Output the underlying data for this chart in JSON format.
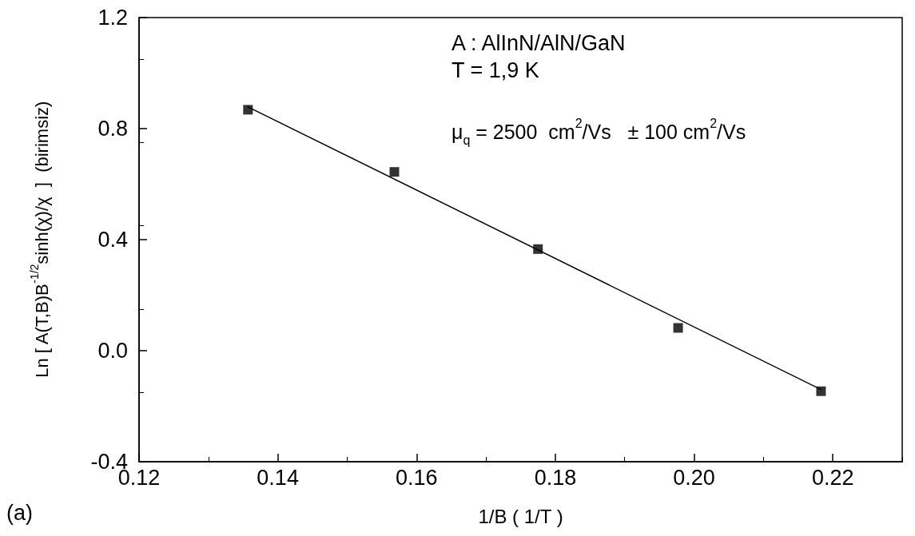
{
  "chart_data": {
    "type": "scatter",
    "xlabel": "1/B ( 1/T )",
    "ylabel": "Ln [ A(T,B)B$^{-1/2}$sinh(χ)/χ  ]  (birimsiz)",
    "annotations": [
      "A : AlInN/AlN/GaN",
      "T = 1,9 K",
      "μ$_{q}$ = 2500  cm$^{2}$/Vs   ± 100 cm$^{2}$/Vs",
      "(a)"
    ],
    "series": [
      {
        "color": "#000000",
        "marker": "square",
        "x": [
          0.1357,
          0.1568,
          0.1775,
          0.1977,
          0.2183
        ],
        "values": [
          0.868,
          0.644,
          0.366,
          0.082,
          -0.146
        ]
      },
      {
        "type": "line",
        "marker": "none",
        "color": "#000000",
        "x": [
          0.1357,
          0.2183
        ],
        "values": [
          0.878,
          -0.14
        ]
      }
    ],
    "xlim": [
      0.12,
      0.23
    ],
    "ylim": [
      -0.4,
      1.2
    ],
    "xticks": [
      0.12,
      0.14,
      0.16,
      0.18,
      {
        "value": 0.2,
        "label": "0.20"
      },
      0.22
    ],
    "yticks": [
      -0.4,
      {
        "value": 0,
        "label": "0.0"
      },
      0.4,
      0.8,
      1.2
    ],
    "grid": false
  }
}
